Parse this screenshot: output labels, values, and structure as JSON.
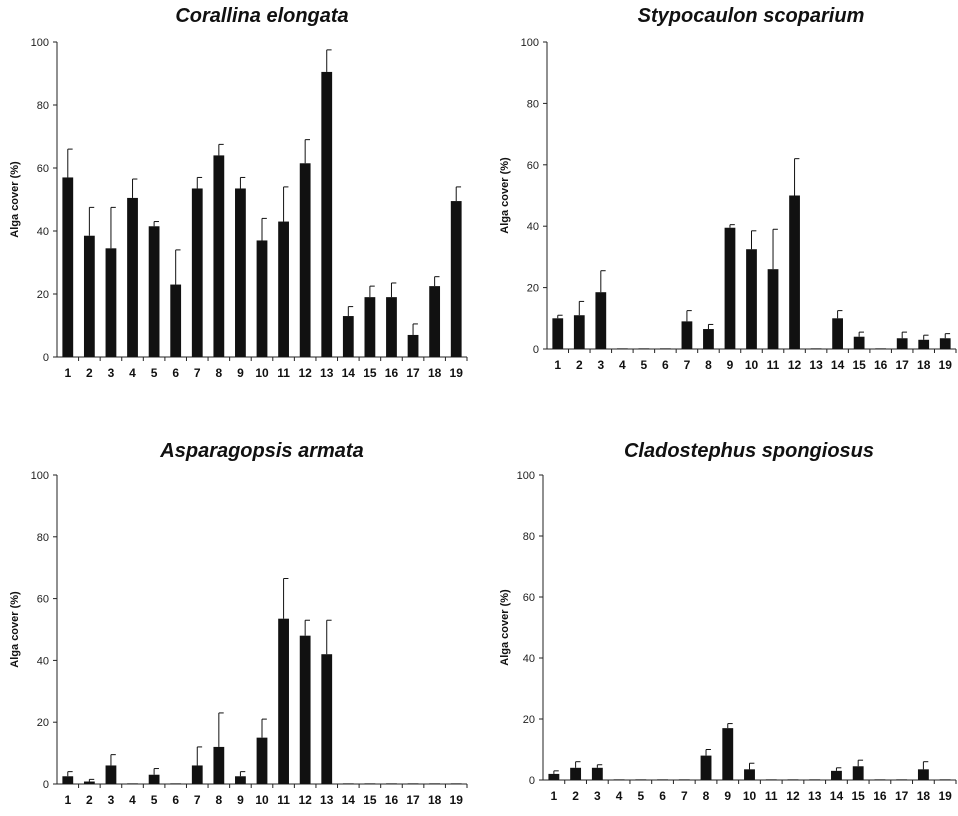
{
  "chart_data": [
    {
      "type": "bar",
      "title": "Corallina elongata",
      "ylabel": "Alga cover (%)",
      "xlabel": "",
      "ylim": [
        0,
        100
      ],
      "yticks": [
        0,
        20,
        40,
        60,
        80,
        100
      ],
      "categories": [
        "1",
        "2",
        "3",
        "4",
        "5",
        "6",
        "7",
        "8",
        "9",
        "10",
        "11",
        "12",
        "13",
        "14",
        "15",
        "16",
        "17",
        "18",
        "19"
      ],
      "values": [
        57,
        38.5,
        34.5,
        50.5,
        41.5,
        23,
        53.5,
        64,
        53.5,
        37,
        43,
        61.5,
        90.5,
        13,
        19,
        19,
        7,
        22.5,
        49.5
      ],
      "errors": [
        9,
        9,
        13,
        6,
        1.5,
        11,
        3.5,
        3.5,
        3.5,
        7,
        11,
        7.5,
        7,
        3,
        3.5,
        4.5,
        3.5,
        3,
        4.5
      ]
    },
    {
      "type": "bar",
      "title": "Stypocaulon scoparium",
      "ylabel": "Alga cover (%)",
      "xlabel": "",
      "ylim": [
        0,
        100
      ],
      "yticks": [
        0,
        20,
        40,
        60,
        80,
        100
      ],
      "categories": [
        "1",
        "2",
        "3",
        "4",
        "5",
        "6",
        "7",
        "8",
        "9",
        "10",
        "11",
        "12",
        "13",
        "14",
        "15",
        "16",
        "17",
        "18",
        "19"
      ],
      "values": [
        10,
        11,
        18.5,
        0,
        0,
        0,
        9,
        6.5,
        39.5,
        32.5,
        26,
        50,
        0,
        10,
        4,
        0,
        3.5,
        3,
        3.5
      ],
      "errors": [
        1,
        4.5,
        7,
        0,
        0,
        0,
        3.5,
        1.5,
        1,
        6,
        13,
        12,
        0,
        2.5,
        1.5,
        0,
        2,
        1.5,
        1.5
      ]
    },
    {
      "type": "bar",
      "title": "Asparagopsis armata",
      "ylabel": "Alga cover (%)",
      "xlabel": "",
      "ylim": [
        0,
        100
      ],
      "yticks": [
        0,
        20,
        40,
        60,
        80,
        100
      ],
      "categories": [
        "1",
        "2",
        "3",
        "4",
        "5",
        "6",
        "7",
        "8",
        "9",
        "10",
        "11",
        "12",
        "13",
        "14",
        "15",
        "16",
        "17",
        "18",
        "19"
      ],
      "values": [
        2.5,
        0.8,
        6,
        0,
        3,
        0,
        6,
        12,
        2.5,
        15,
        53.5,
        48,
        42,
        0,
        0,
        0,
        0,
        0,
        0
      ],
      "errors": [
        1.5,
        0.7,
        3.5,
        0,
        2,
        0,
        6,
        11,
        1.5,
        6,
        13,
        5,
        11,
        0,
        0,
        0,
        0,
        0,
        0
      ]
    },
    {
      "type": "bar",
      "title": "Cladostephus spongiosus",
      "ylabel": "Alga cover (%)",
      "xlabel": "",
      "ylim": [
        0,
        100
      ],
      "yticks": [
        0,
        20,
        40,
        60,
        80,
        100
      ],
      "categories": [
        "1",
        "2",
        "3",
        "4",
        "5",
        "6",
        "7",
        "8",
        "9",
        "10",
        "11",
        "12",
        "13",
        "14",
        "15",
        "16",
        "17",
        "18",
        "19"
      ],
      "values": [
        2,
        4,
        4,
        0,
        0,
        0,
        0,
        8,
        17,
        3.5,
        0,
        0,
        0,
        3,
        4.5,
        0,
        0,
        3.5,
        0
      ],
      "errors": [
        1,
        2,
        1,
        0,
        0,
        0,
        0,
        2,
        1.5,
        2,
        0,
        0,
        0,
        1,
        2,
        0,
        0,
        2.5,
        0
      ]
    }
  ]
}
